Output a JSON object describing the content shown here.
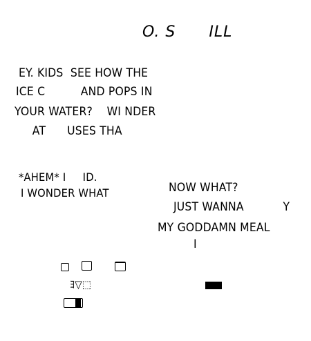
{
  "comic": {
    "title": "O. S      ILL",
    "left_speech": [
      "EY. KIDS  SEE HOW THE",
      "ICE C          AND POPS IN",
      "YOUR WATER?    WI NDER",
      "     AT      USES THA"
    ],
    "left_reply": [
      "*AHEM* I     ID.",
      "I WONDER WHAT"
    ],
    "right_speech": [
      "NOW WHAT?",
      "JUST WANNA           Y",
      "MY GODDAMN MEAL",
      "I"
    ]
  },
  "colors": {
    "background": "#ffffff",
    "ink": "#000000"
  }
}
